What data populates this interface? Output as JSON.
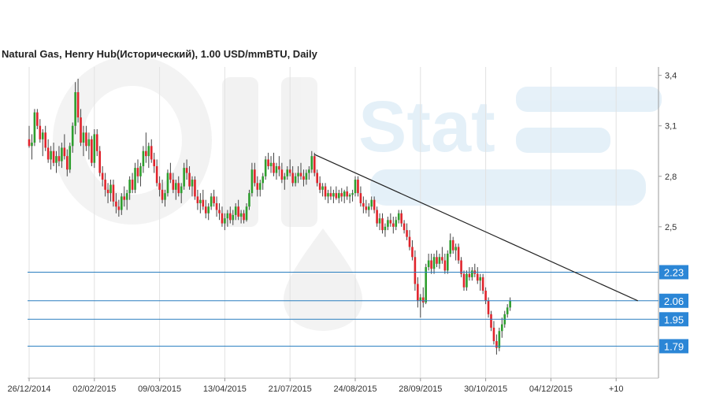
{
  "header": {
    "title": "Natural Gas, Henry Hub(Исторический), 1.00 USD/mmBTU, Daily"
  },
  "watermark": {
    "text_1": "Oil",
    "text_2": "Stat"
  },
  "colors": {
    "up": "#2e9e2e",
    "down": "#e0242c",
    "level_line": "#2a7fc0",
    "level_badge": "#2b86d6",
    "trendline": "#222222",
    "grid": "#e2e2e2"
  },
  "chart_data": {
    "type": "candlestick",
    "title": "Natural Gas, Henry Hub(Исторический), 1.00 USD/mmBTU, Daily",
    "ylim": [
      1.6,
      3.45
    ],
    "y_ticks": [
      3.4,
      3.1,
      2.8,
      2.5
    ],
    "y_tick_labels": [
      "3,4",
      "3,1",
      "2,8",
      "2,5"
    ],
    "x_ticks": [
      {
        "bar": 0,
        "label": "26/12/2014"
      },
      {
        "bar": 24,
        "label": "02/02/2015"
      },
      {
        "bar": 48,
        "label": "09/03/2015"
      },
      {
        "bar": 72,
        "label": "13/04/2015"
      },
      {
        "bar": 96,
        "label": "21/07/2015"
      },
      {
        "bar": 120,
        "label": "24/08/2015"
      },
      {
        "bar": 144,
        "label": "28/09/2015"
      },
      {
        "bar": 168,
        "label": "30/10/2015"
      },
      {
        "bar": 192,
        "label": "04/12/2015"
      },
      {
        "bar": 216,
        "label": "+10"
      }
    ],
    "levels": [
      {
        "value": 2.23,
        "label": "2.23"
      },
      {
        "value": 2.06,
        "label": "2.06"
      },
      {
        "value": 1.95,
        "label": "1.95"
      },
      {
        "value": 1.79,
        "label": "1.79"
      }
    ],
    "trendline": {
      "start": [
        105,
        2.93
      ],
      "end": [
        224,
        2.06
      ]
    },
    "ohlc": [
      [
        3.02,
        3.1,
        2.97,
        2.98
      ],
      [
        2.98,
        3.05,
        2.9,
        3.0
      ],
      [
        3.0,
        3.2,
        2.98,
        3.18
      ],
      [
        3.18,
        3.2,
        3.08,
        3.1
      ],
      [
        3.1,
        3.14,
        3.0,
        3.02
      ],
      [
        3.02,
        3.08,
        2.92,
        3.06
      ],
      [
        3.06,
        3.1,
        2.95,
        2.97
      ],
      [
        2.97,
        3.02,
        2.88,
        2.9
      ],
      [
        2.9,
        2.98,
        2.84,
        2.95
      ],
      [
        2.95,
        3.0,
        2.86,
        2.88
      ],
      [
        2.88,
        2.95,
        2.82,
        2.92
      ],
      [
        2.92,
        2.98,
        2.86,
        2.89
      ],
      [
        2.89,
        3.0,
        2.85,
        2.97
      ],
      [
        2.97,
        3.05,
        2.9,
        2.92
      ],
      [
        2.92,
        2.96,
        2.8,
        2.84
      ],
      [
        2.84,
        3.0,
        2.82,
        2.98
      ],
      [
        2.98,
        3.12,
        2.94,
        3.1
      ],
      [
        3.1,
        3.36,
        3.05,
        3.3
      ],
      [
        3.3,
        3.38,
        3.12,
        3.15
      ],
      [
        3.15,
        3.2,
        2.98,
        3.0
      ],
      [
        3.0,
        3.1,
        2.92,
        3.06
      ],
      [
        3.06,
        3.1,
        2.95,
        2.98
      ],
      [
        2.98,
        3.06,
        2.9,
        3.02
      ],
      [
        3.02,
        3.04,
        2.86,
        2.88
      ],
      [
        2.88,
        3.08,
        2.85,
        3.05
      ],
      [
        3.05,
        3.08,
        2.92,
        2.95
      ],
      [
        2.95,
        2.98,
        2.8,
        2.82
      ],
      [
        2.82,
        2.86,
        2.74,
        2.78
      ],
      [
        2.78,
        2.82,
        2.68,
        2.72
      ],
      [
        2.72,
        2.76,
        2.64,
        2.7
      ],
      [
        2.7,
        2.78,
        2.65,
        2.75
      ],
      [
        2.75,
        2.78,
        2.62,
        2.65
      ],
      [
        2.65,
        2.7,
        2.58,
        2.62
      ],
      [
        2.62,
        2.66,
        2.56,
        2.6
      ],
      [
        2.6,
        2.7,
        2.57,
        2.68
      ],
      [
        2.68,
        2.74,
        2.62,
        2.66
      ],
      [
        2.66,
        2.72,
        2.6,
        2.7
      ],
      [
        2.7,
        2.8,
        2.66,
        2.78
      ],
      [
        2.78,
        2.82,
        2.7,
        2.72
      ],
      [
        2.72,
        2.88,
        2.7,
        2.85
      ],
      [
        2.85,
        2.9,
        2.76,
        2.8
      ],
      [
        2.8,
        2.88,
        2.74,
        2.86
      ],
      [
        2.86,
        2.98,
        2.82,
        2.95
      ],
      [
        2.95,
        3.06,
        2.88,
        2.92
      ],
      [
        2.92,
        3.0,
        2.85,
        2.98
      ],
      [
        2.98,
        3.02,
        2.88,
        2.9
      ],
      [
        2.9,
        2.94,
        2.82,
        2.86
      ],
      [
        2.86,
        2.9,
        2.74,
        2.76
      ],
      [
        2.76,
        2.8,
        2.68,
        2.72
      ],
      [
        2.72,
        2.78,
        2.64,
        2.66
      ],
      [
        2.66,
        2.72,
        2.62,
        2.7
      ],
      [
        2.7,
        2.84,
        2.68,
        2.82
      ],
      [
        2.82,
        2.88,
        2.76,
        2.78
      ],
      [
        2.78,
        2.82,
        2.7,
        2.72
      ],
      [
        2.72,
        2.78,
        2.66,
        2.76
      ],
      [
        2.76,
        2.8,
        2.68,
        2.7
      ],
      [
        2.7,
        2.76,
        2.64,
        2.74
      ],
      [
        2.74,
        2.88,
        2.72,
        2.85
      ],
      [
        2.85,
        2.9,
        2.78,
        2.82
      ],
      [
        2.82,
        2.86,
        2.72,
        2.74
      ],
      [
        2.74,
        2.8,
        2.68,
        2.78
      ],
      [
        2.78,
        2.8,
        2.66,
        2.68
      ],
      [
        2.68,
        2.72,
        2.6,
        2.64
      ],
      [
        2.64,
        2.7,
        2.58,
        2.66
      ],
      [
        2.66,
        2.72,
        2.6,
        2.62
      ],
      [
        2.62,
        2.66,
        2.55,
        2.58
      ],
      [
        2.58,
        2.64,
        2.54,
        2.62
      ],
      [
        2.62,
        2.7,
        2.6,
        2.68
      ],
      [
        2.68,
        2.72,
        2.62,
        2.64
      ],
      [
        2.64,
        2.68,
        2.56,
        2.6
      ],
      [
        2.6,
        2.64,
        2.54,
        2.58
      ],
      [
        2.58,
        2.62,
        2.5,
        2.52
      ],
      [
        2.52,
        2.58,
        2.48,
        2.55
      ],
      [
        2.55,
        2.6,
        2.5,
        2.58
      ],
      [
        2.58,
        2.62,
        2.52,
        2.54
      ],
      [
        2.54,
        2.6,
        2.51,
        2.57
      ],
      [
        2.57,
        2.64,
        2.54,
        2.62
      ],
      [
        2.62,
        2.66,
        2.54,
        2.56
      ],
      [
        2.56,
        2.6,
        2.52,
        2.58
      ],
      [
        2.58,
        2.6,
        2.52,
        2.54
      ],
      [
        2.54,
        2.64,
        2.53,
        2.62
      ],
      [
        2.62,
        2.72,
        2.6,
        2.7
      ],
      [
        2.7,
        2.88,
        2.68,
        2.84
      ],
      [
        2.84,
        2.88,
        2.74,
        2.76
      ],
      [
        2.76,
        2.8,
        2.68,
        2.72
      ],
      [
        2.72,
        2.78,
        2.68,
        2.76
      ],
      [
        2.76,
        2.82,
        2.72,
        2.8
      ],
      [
        2.8,
        2.92,
        2.78,
        2.9
      ],
      [
        2.9,
        2.94,
        2.84,
        2.86
      ],
      [
        2.86,
        2.92,
        2.82,
        2.88
      ],
      [
        2.88,
        2.94,
        2.8,
        2.82
      ],
      [
        2.82,
        2.88,
        2.78,
        2.86
      ],
      [
        2.86,
        2.92,
        2.8,
        2.84
      ],
      [
        2.84,
        2.88,
        2.76,
        2.78
      ],
      [
        2.78,
        2.82,
        2.72,
        2.8
      ],
      [
        2.8,
        2.86,
        2.78,
        2.84
      ],
      [
        2.84,
        2.9,
        2.8,
        2.82
      ],
      [
        2.82,
        2.86,
        2.74,
        2.76
      ],
      [
        2.76,
        2.82,
        2.74,
        2.8
      ],
      [
        2.8,
        2.86,
        2.76,
        2.82
      ],
      [
        2.82,
        2.88,
        2.78,
        2.8
      ],
      [
        2.8,
        2.84,
        2.74,
        2.78
      ],
      [
        2.78,
        2.84,
        2.75,
        2.82
      ],
      [
        2.82,
        2.86,
        2.78,
        2.84
      ],
      [
        2.84,
        2.95,
        2.82,
        2.92
      ],
      [
        2.92,
        2.94,
        2.8,
        2.82
      ],
      [
        2.82,
        2.84,
        2.74,
        2.76
      ],
      [
        2.76,
        2.8,
        2.7,
        2.72
      ],
      [
        2.72,
        2.76,
        2.68,
        2.74
      ],
      [
        2.74,
        2.76,
        2.66,
        2.68
      ],
      [
        2.68,
        2.72,
        2.64,
        2.7
      ],
      [
        2.7,
        2.74,
        2.66,
        2.68
      ],
      [
        2.68,
        2.72,
        2.64,
        2.7
      ],
      [
        2.7,
        2.74,
        2.66,
        2.67
      ],
      [
        2.67,
        2.72,
        2.64,
        2.7
      ],
      [
        2.7,
        2.73,
        2.65,
        2.68
      ],
      [
        2.68,
        2.72,
        2.64,
        2.71
      ],
      [
        2.71,
        2.74,
        2.66,
        2.68
      ],
      [
        2.68,
        2.7,
        2.64,
        2.69
      ],
      [
        2.69,
        2.72,
        2.65,
        2.7
      ],
      [
        2.7,
        2.8,
        2.68,
        2.78
      ],
      [
        2.78,
        2.8,
        2.68,
        2.7
      ],
      [
        2.7,
        2.74,
        2.62,
        2.64
      ],
      [
        2.64,
        2.68,
        2.58,
        2.62
      ],
      [
        2.62,
        2.66,
        2.58,
        2.6
      ],
      [
        2.6,
        2.64,
        2.56,
        2.62
      ],
      [
        2.62,
        2.68,
        2.6,
        2.66
      ],
      [
        2.66,
        2.68,
        2.58,
        2.6
      ],
      [
        2.6,
        2.62,
        2.5,
        2.52
      ],
      [
        2.52,
        2.58,
        2.48,
        2.55
      ],
      [
        2.55,
        2.58,
        2.46,
        2.48
      ],
      [
        2.48,
        2.52,
        2.44,
        2.5
      ],
      [
        2.5,
        2.56,
        2.48,
        2.54
      ],
      [
        2.54,
        2.58,
        2.5,
        2.52
      ],
      [
        2.52,
        2.56,
        2.46,
        2.5
      ],
      [
        2.5,
        2.56,
        2.48,
        2.54
      ],
      [
        2.54,
        2.6,
        2.52,
        2.58
      ],
      [
        2.58,
        2.6,
        2.5,
        2.52
      ],
      [
        2.52,
        2.54,
        2.46,
        2.48
      ],
      [
        2.48,
        2.52,
        2.42,
        2.44
      ],
      [
        2.44,
        2.48,
        2.36,
        2.38
      ],
      [
        2.38,
        2.42,
        2.3,
        2.32
      ],
      [
        2.32,
        2.36,
        2.12,
        2.16
      ],
      [
        2.16,
        2.2,
        2.02,
        2.06
      ],
      [
        2.06,
        2.1,
        1.96,
        2.08
      ],
      [
        2.08,
        2.14,
        2.02,
        2.05
      ],
      [
        2.05,
        2.28,
        2.04,
        2.26
      ],
      [
        2.26,
        2.34,
        2.24,
        2.3
      ],
      [
        2.3,
        2.34,
        2.22,
        2.25
      ],
      [
        2.25,
        2.34,
        2.22,
        2.32
      ],
      [
        2.32,
        2.36,
        2.26,
        2.28
      ],
      [
        2.28,
        2.34,
        2.25,
        2.32
      ],
      [
        2.32,
        2.38,
        2.28,
        2.3
      ],
      [
        2.3,
        2.34,
        2.22,
        2.24
      ],
      [
        2.24,
        2.36,
        2.22,
        2.34
      ],
      [
        2.34,
        2.46,
        2.32,
        2.42
      ],
      [
        2.42,
        2.44,
        2.34,
        2.36
      ],
      [
        2.36,
        2.4,
        2.3,
        2.38
      ],
      [
        2.38,
        2.4,
        2.28,
        2.3
      ],
      [
        2.3,
        2.32,
        2.2,
        2.22
      ],
      [
        2.22,
        2.24,
        2.12,
        2.14
      ],
      [
        2.14,
        2.24,
        2.12,
        2.22
      ],
      [
        2.22,
        2.26,
        2.18,
        2.2
      ],
      [
        2.2,
        2.26,
        2.18,
        2.24
      ],
      [
        2.24,
        2.28,
        2.2,
        2.22
      ],
      [
        2.22,
        2.26,
        2.16,
        2.18
      ],
      [
        2.18,
        2.22,
        2.12,
        2.2
      ],
      [
        2.2,
        2.22,
        2.1,
        2.12
      ],
      [
        2.12,
        2.14,
        2.04,
        2.06
      ],
      [
        2.06,
        2.08,
        1.96,
        1.98
      ],
      [
        1.98,
        2.0,
        1.88,
        1.9
      ],
      [
        1.9,
        1.94,
        1.8,
        1.82
      ],
      [
        1.82,
        1.86,
        1.74,
        1.78
      ],
      [
        1.78,
        1.9,
        1.76,
        1.88
      ],
      [
        1.88,
        1.96,
        1.84,
        1.92
      ],
      [
        1.92,
        2.0,
        1.9,
        1.98
      ],
      [
        1.98,
        2.04,
        1.96,
        2.02
      ],
      [
        2.02,
        2.08,
        2.0,
        2.06
      ]
    ]
  },
  "axis": {
    "x_labels": [
      "26/12/2014",
      "02/02/2015",
      "09/03/2015",
      "13/04/2015",
      "21/07/2015",
      "24/08/2015",
      "28/09/2015",
      "30/10/2015",
      "04/12/2015",
      "+10"
    ],
    "y_labels": [
      "3,4",
      "3,1",
      "2,8",
      "2,5"
    ]
  }
}
